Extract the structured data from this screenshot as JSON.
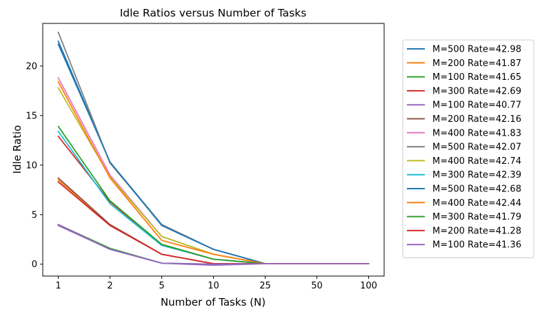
{
  "chart_data": {
    "type": "line",
    "title": "Idle Ratios versus Number of Tasks",
    "xlabel": "Number of Tasks (N)",
    "ylabel": "Idle Ratio",
    "categories": [
      "1",
      "2",
      "5",
      "10",
      "25",
      "50",
      "100"
    ],
    "ylim": [
      -1.2,
      24.3
    ],
    "yticks": [
      0,
      5,
      10,
      15,
      20
    ],
    "grid": false,
    "legend_position": "outside-right",
    "series": [
      {
        "name": "M=500 Rate=42.98",
        "color": "#1f77b4",
        "values": [
          22.5,
          10.3,
          4.0,
          1.5,
          0.05,
          0.05,
          0.05
        ]
      },
      {
        "name": "M=200 Rate=41.87",
        "color": "#ff7f0e",
        "values": [
          8.5,
          4.0,
          1.0,
          0.05,
          0.05,
          0.05,
          0.05
        ]
      },
      {
        "name": "M=100 Rate=41.65",
        "color": "#2ca02c",
        "values": [
          4.0,
          1.6,
          0.1,
          0.0,
          0.05,
          0.05,
          0.05
        ]
      },
      {
        "name": "M=300 Rate=42.69",
        "color": "#d62728",
        "values": [
          12.9,
          6.3,
          2.0,
          0.5,
          0.05,
          0.05,
          0.05
        ]
      },
      {
        "name": "M=100 Rate=40.77",
        "color": "#9467bd",
        "values": [
          4.0,
          1.5,
          0.1,
          -0.1,
          0.05,
          0.05,
          0.05
        ]
      },
      {
        "name": "M=200 Rate=42.16",
        "color": "#8c564b",
        "values": [
          8.7,
          4.0,
          1.0,
          0.05,
          0.05,
          0.05,
          0.05
        ]
      },
      {
        "name": "M=400 Rate=41.83",
        "color": "#e377c2",
        "values": [
          18.8,
          9.0,
          2.8,
          1.0,
          0.05,
          0.05,
          0.05
        ]
      },
      {
        "name": "M=500 Rate=42.07",
        "color": "#7f7f7f",
        "values": [
          23.4,
          10.2,
          4.0,
          1.5,
          0.05,
          0.05,
          0.05
        ]
      },
      {
        "name": "M=400 Rate=42.74",
        "color": "#bcbd22",
        "values": [
          17.8,
          8.8,
          2.8,
          1.0,
          0.05,
          0.05,
          0.05
        ]
      },
      {
        "name": "M=300 Rate=42.39",
        "color": "#17becf",
        "values": [
          13.4,
          6.1,
          1.9,
          0.5,
          0.05,
          0.05,
          0.05
        ]
      },
      {
        "name": "M=500 Rate=42.68",
        "color": "#1f77b4",
        "values": [
          22.2,
          10.3,
          3.9,
          1.5,
          0.05,
          0.05,
          0.05
        ]
      },
      {
        "name": "M=400 Rate=42.44",
        "color": "#ff7f0e",
        "values": [
          18.4,
          8.7,
          2.4,
          1.0,
          0.05,
          0.05,
          0.05
        ]
      },
      {
        "name": "M=300 Rate=41.79",
        "color": "#2ca02c",
        "values": [
          13.9,
          6.4,
          2.0,
          0.5,
          0.05,
          0.05,
          0.05
        ]
      },
      {
        "name": "M=200 Rate=41.28",
        "color": "#d62728",
        "values": [
          8.3,
          3.9,
          1.0,
          0.05,
          0.05,
          0.05,
          0.05
        ]
      },
      {
        "name": "M=100 Rate=41.36",
        "color": "#9467bd",
        "values": [
          3.9,
          1.5,
          0.1,
          0.0,
          0.05,
          0.05,
          0.05
        ]
      }
    ]
  }
}
